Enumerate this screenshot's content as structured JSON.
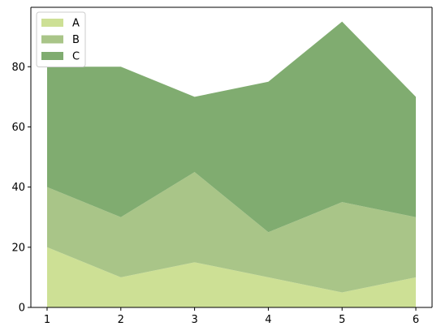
{
  "chart_data": {
    "type": "area",
    "stacked": true,
    "x": [
      1,
      2,
      3,
      4,
      5,
      6
    ],
    "series": [
      {
        "name": "A",
        "values": [
          20,
          10,
          15,
          10,
          5,
          10
        ],
        "color": "#cde095"
      },
      {
        "name": "B",
        "values": [
          20,
          20,
          30,
          15,
          30,
          20
        ],
        "color": "#a9c588"
      },
      {
        "name": "C",
        "values": [
          40,
          50,
          25,
          50,
          60,
          40
        ],
        "color": "#80ac70"
      }
    ],
    "xticks": [
      1,
      2,
      3,
      4,
      5,
      6
    ],
    "yticks": [
      0,
      20,
      40,
      60,
      80
    ],
    "xlim": [
      0.78,
      6.22
    ],
    "ylim": [
      0,
      99.75
    ],
    "title": "",
    "xlabel": "",
    "ylabel": "",
    "grid": false,
    "legend_position": "upper-left"
  }
}
